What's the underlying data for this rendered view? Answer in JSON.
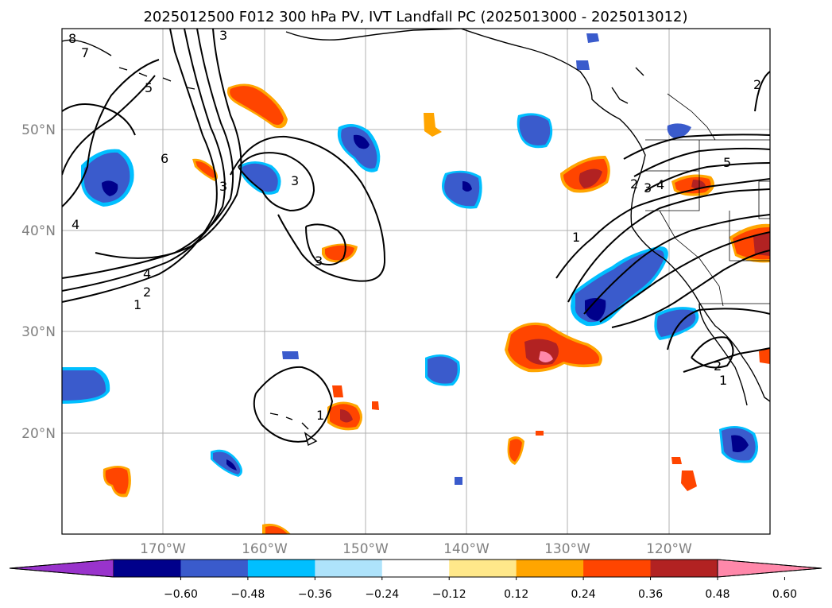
{
  "title": "2025012500 F012 300 hPa PV, IVT Landfall PC (2025013000 - 2025013012)",
  "map": {
    "lat_labels": [
      "50°N",
      "40°N",
      "30°N",
      "20°N"
    ],
    "lon_labels": [
      "170°W",
      "160°W",
      "150°W",
      "140°W",
      "130°W",
      "120°W"
    ],
    "contour_labels": [
      "8",
      "7",
      "3",
      "5",
      "6",
      "4",
      "3",
      "3",
      "3",
      "4",
      "2",
      "1",
      "1",
      "1",
      "2",
      "3",
      "4",
      "5",
      "2",
      "2",
      "1"
    ]
  },
  "colorbar": {
    "ticks": [
      "−0.60",
      "−0.48",
      "−0.36",
      "−0.24",
      "−0.12",
      "0.12",
      "0.24",
      "0.36",
      "0.48",
      "0.60"
    ],
    "colors": [
      "#9933cc",
      "#00008b",
      "#3a5bcc",
      "#00bfff",
      "#aee3fb",
      "#ffffff",
      "#ffe88a",
      "#ffa500",
      "#ff4500",
      "#b22222",
      "#ff88aa"
    ]
  },
  "colors": {
    "neg_outer": "#00bfff",
    "neg_mid": "#3a5bcc",
    "neg_core": "#00008b",
    "pos_outer": "#ffa500",
    "pos_mid": "#ff4500",
    "pos_core": "#b22222",
    "pos_peak": "#ff88aa"
  }
}
